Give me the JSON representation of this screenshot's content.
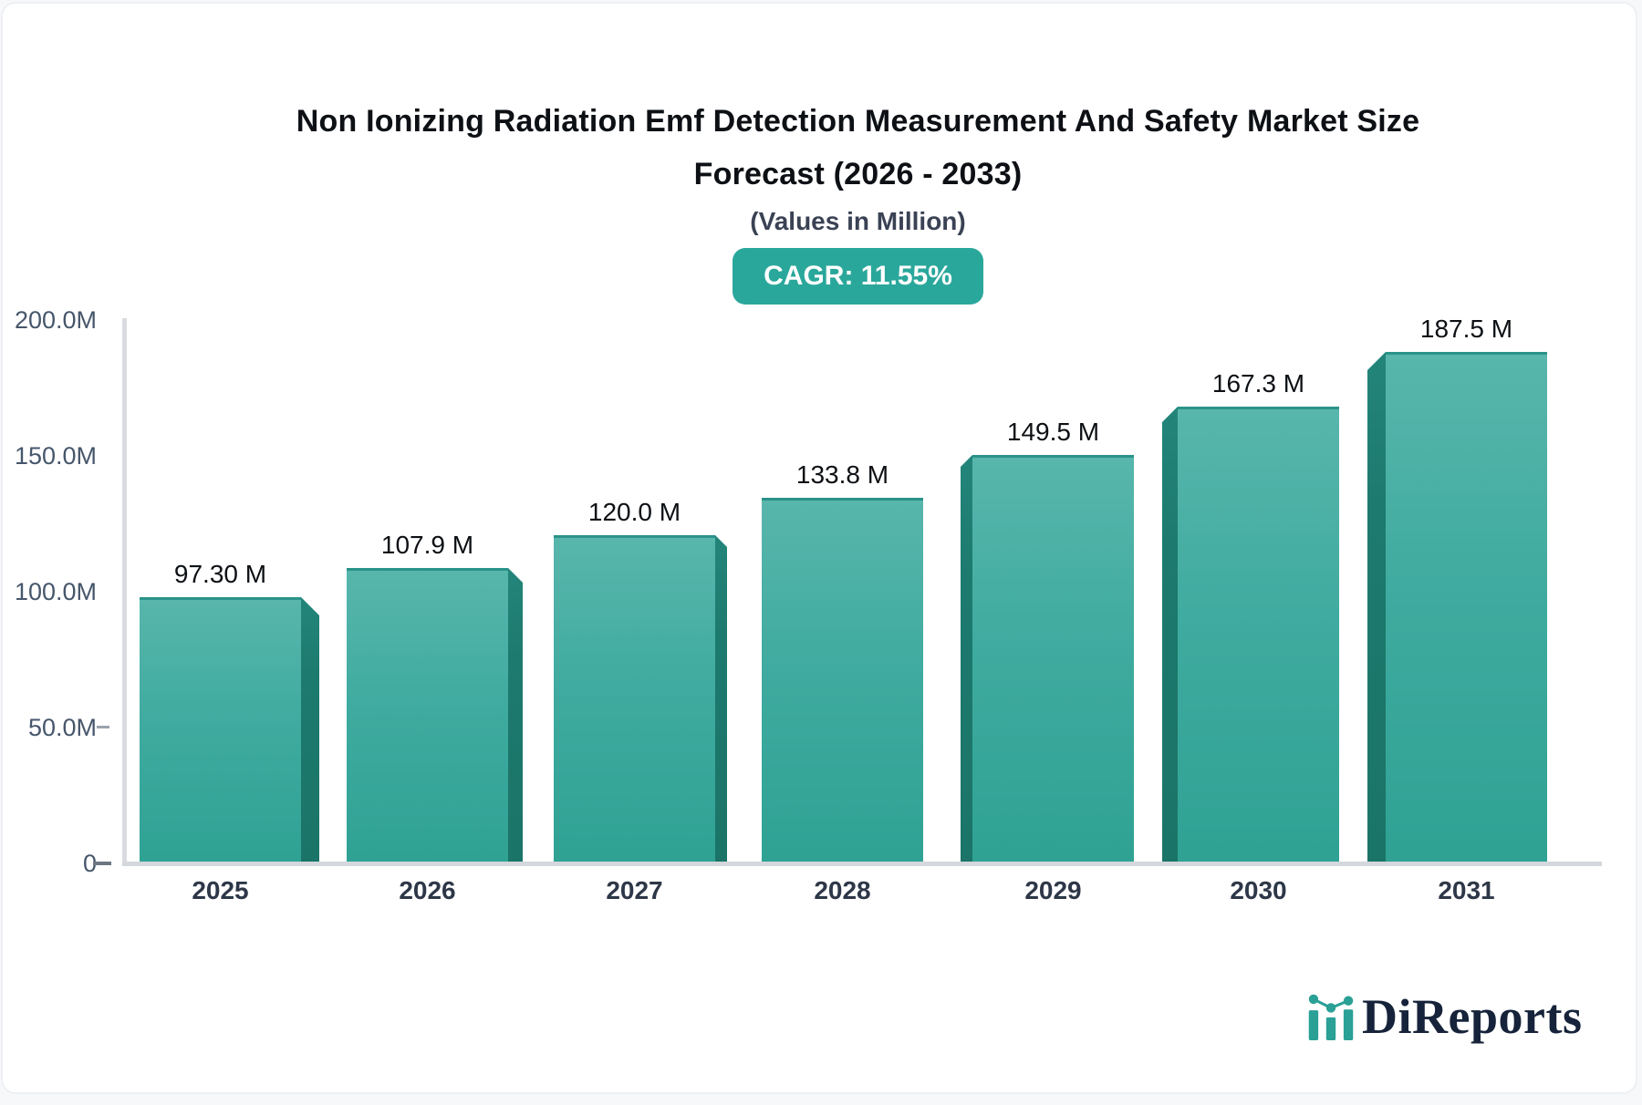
{
  "page": {
    "background": "#f7f8fa",
    "card_background": "#ffffff"
  },
  "header": {
    "title_line1": "Non Ionizing Radiation Emf Detection Measurement And Safety Market Size",
    "title_line2": "Forecast (2026 - 2033)",
    "subtitle": "(Values in Million)",
    "cagr_badge": "CAGR: 11.55%",
    "badge_color": "#2aa79b"
  },
  "chart_data": {
    "type": "bar",
    "title": "Non Ionizing Radiation Emf Detection Measurement And Safety Market Size Forecast (2026 - 2033)",
    "subtitle": "(Values in Million)",
    "cagr_percent": 11.55,
    "categories": [
      "2025",
      "2026",
      "2027",
      "2028",
      "2029",
      "2030",
      "2031"
    ],
    "values": [
      97.3,
      107.9,
      120.0,
      133.8,
      149.5,
      167.3,
      187.5
    ],
    "value_labels": [
      "97.30 M",
      "107.9 M",
      "120.0 M",
      "133.8 M",
      "149.5 M",
      "167.3 M",
      "187.5 M"
    ],
    "ytick_labels": [
      "200.0M",
      "150.0M",
      "100.0M",
      "50.0M",
      "0"
    ],
    "ylim": [
      0,
      200
    ],
    "xlabel": "",
    "ylabel": "",
    "grid": false,
    "legend": false,
    "bar_color": "#3aab9d",
    "bar_side_color": "#1d7a6e"
  },
  "footer": {
    "logo_text": "DiReports",
    "logo_color": "#16233a",
    "logo_accent": "#2aa096",
    "logo_icon": "bar-chart-logo-icon"
  }
}
